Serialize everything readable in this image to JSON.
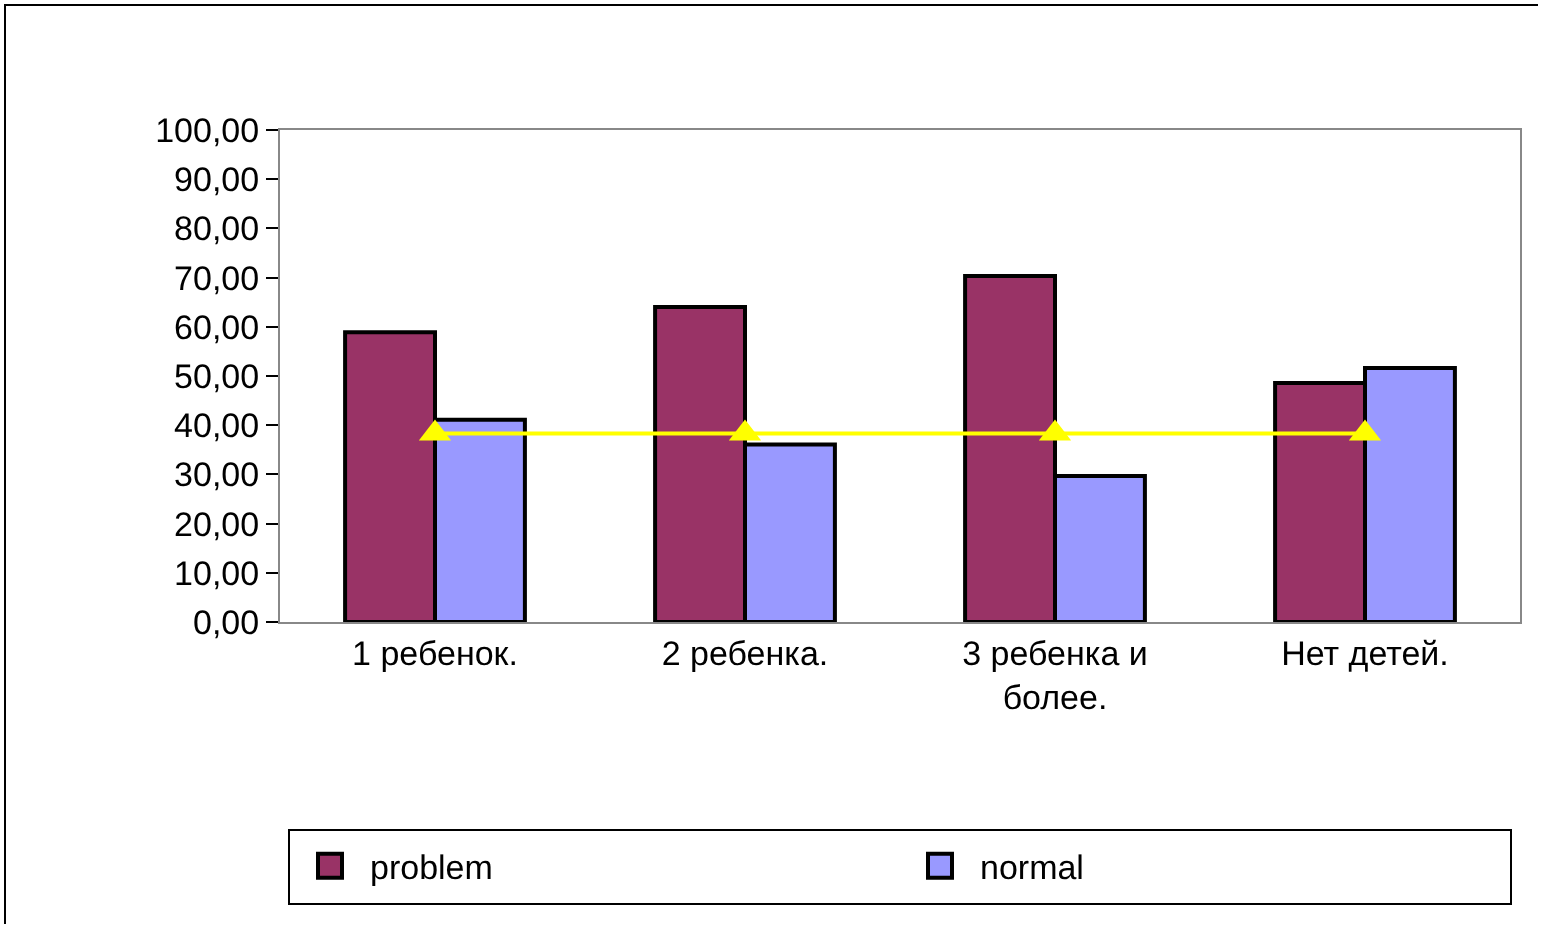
{
  "chart_data": {
    "type": "bar",
    "categories": [
      "1 ребенок.",
      "2 ребенка.",
      "3 ребенка и более.",
      "Нет детей."
    ],
    "series": [
      {
        "name": "problem",
        "color": "#993366",
        "values": [
          58.9,
          64.0,
          70.3,
          48.6
        ]
      },
      {
        "name": "normal",
        "color": "#9999ff",
        "values": [
          41.1,
          36.1,
          29.7,
          51.6
        ]
      },
      {
        "type": "line",
        "color": "#ffff00",
        "marker": "triangle",
        "values": [
          38.3,
          38.3,
          38.3,
          38.3
        ]
      }
    ],
    "ylim": [
      0,
      100
    ],
    "yticks": [
      {
        "value": 0,
        "label": "0,00"
      },
      {
        "value": 10,
        "label": "10,00"
      },
      {
        "value": 20,
        "label": "20,00"
      },
      {
        "value": 30,
        "label": "30,00"
      },
      {
        "value": 40,
        "label": "40,00"
      },
      {
        "value": 50,
        "label": "50,00"
      },
      {
        "value": 60,
        "label": "60,00"
      },
      {
        "value": 70,
        "label": "70,00"
      },
      {
        "value": 80,
        "label": "80,00"
      },
      {
        "value": 90,
        "label": "90,00"
      },
      {
        "value": 100,
        "label": "100,00"
      }
    ],
    "grid": false,
    "legend": "bottom"
  }
}
